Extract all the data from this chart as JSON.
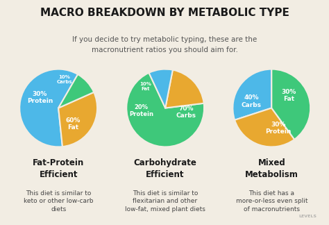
{
  "title": "MACRO BREAKDOWN BY METABOLIC TYPE",
  "subtitle": "If you decide to try metabolic typing, these are the\nmacronutrient ratios you should aim for.",
  "bg_color": "#f2ede3",
  "text_color": "#1a1a1a",
  "pie1": {
    "values": [
      60,
      30,
      10
    ],
    "labels": [
      "60%\nFat",
      "30%\nProtein",
      "10%\nCarbs"
    ],
    "colors": [
      "#4db8e8",
      "#e8a830",
      "#3ec87a"
    ],
    "title": "Fat-Protein\nEfficient",
    "desc": "This diet is similar to\nketo or other low-carb\ndiets",
    "startangle": 60
  },
  "pie2": {
    "values": [
      70,
      20,
      10
    ],
    "labels": [
      "70%\nCarbs",
      "20%\nProtein",
      "10%\nFat"
    ],
    "colors": [
      "#3ec87a",
      "#e8a830",
      "#4db8e8"
    ],
    "title": "Carbohydrate\nEfficient",
    "desc": "This diet is similar to\nflexitarian and other\nlow-fat, mixed plant diets",
    "startangle": 115
  },
  "pie3": {
    "values": [
      30,
      30,
      40
    ],
    "labels": [
      "30%\nFat",
      "30%\nProtein",
      "40%\nCarbs"
    ],
    "colors": [
      "#4db8e8",
      "#e8a830",
      "#3ec87a"
    ],
    "title": "Mixed\nMetabolism",
    "desc": "This diet has a\nmore-or-less even split\nof macronutrients",
    "startangle": 90
  },
  "label_color": "#ffffff",
  "label_fontsize": 6.5,
  "title_fontsize": 11,
  "subtitle_fontsize": 7.5,
  "pie_title_fontsize": 8.5,
  "desc_fontsize": 6.5
}
